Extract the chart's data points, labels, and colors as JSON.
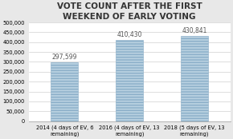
{
  "title": "VOTE COUNT AFTER THE FIRST\nWEEKEND OF EARLY VOTING",
  "categories": [
    "2014 (4 days of EV, 6\nremaining)",
    "2016 (4 days of EV, 13\nremaining)",
    "2018 (5 days of EV, 13\nremaining)"
  ],
  "values": [
    297599,
    410430,
    430841
  ],
  "labels": [
    "297,599",
    "410,430",
    "430,841"
  ],
  "bar_color": "#b8d0e0",
  "bar_edge_color": "#8aaec8",
  "ylim": [
    0,
    500000
  ],
  "yticks": [
    0,
    50000,
    100000,
    150000,
    200000,
    250000,
    300000,
    350000,
    400000,
    450000,
    500000
  ],
  "ytick_labels": [
    "0",
    "50,000",
    "100,000",
    "150,000",
    "200,000",
    "250,000",
    "300,000",
    "350,000",
    "400,000",
    "450,000",
    "500,000"
  ],
  "title_fontsize": 7.5,
  "label_fontsize": 5.5,
  "tick_fontsize": 4.8,
  "background_color": "#e8e8e8",
  "plot_bg_color": "#ffffff",
  "grid_color": "#d0d0d0",
  "text_color": "#555555"
}
